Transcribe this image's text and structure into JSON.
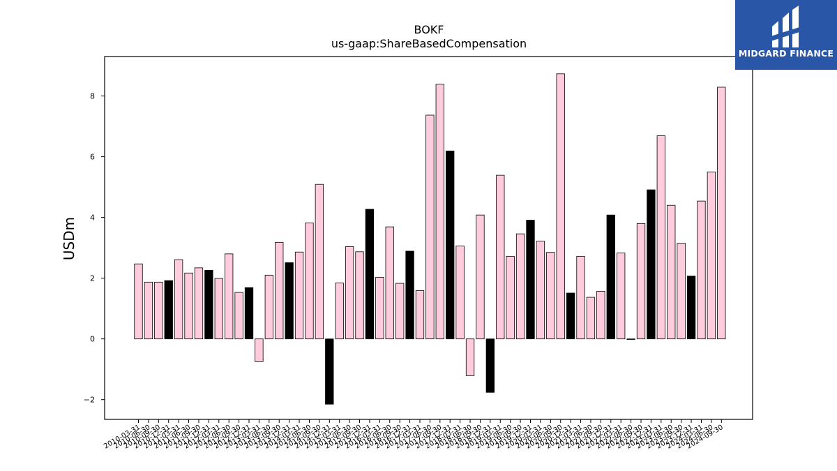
{
  "logo": {
    "text": "MIDGARD FINANCE",
    "icon": "midgard-logo-icon",
    "background": "#2a56a8"
  },
  "chart_data": {
    "type": "bar",
    "title": "BOKF",
    "subtitle": "us-gaap:ShareBasedCompensation",
    "xlabel": "",
    "ylabel": "USDm",
    "ylim": [
      -2.65,
      9.3
    ],
    "yticks": [
      -2,
      0,
      2,
      4,
      6,
      8
    ],
    "grid": false,
    "colors": {
      "default": "#ffccdd",
      "highlight": "#000000",
      "edge": "#000000"
    },
    "categories": [
      "2010-03-31",
      "2010-06-30",
      "2010-09-30",
      "2010-12-31",
      "2011-03-31",
      "2011-06-30",
      "2011-09-30",
      "2011-12-31",
      "2012-03-31",
      "2012-06-30",
      "2012-09-30",
      "2012-12-31",
      "2013-03-31",
      "2013-06-30",
      "2013-09-30",
      "2013-12-31",
      "2014-03-31",
      "2014-06-30",
      "2014-09-30",
      "2014-12-31",
      "2015-03-31",
      "2015-06-30",
      "2015-09-30",
      "2015-12-31",
      "2016-03-31",
      "2016-06-30",
      "2016-09-30",
      "2016-12-31",
      "2017-03-31",
      "2017-06-30",
      "2017-09-30",
      "2017-12-31",
      "2018-03-31",
      "2018-06-30",
      "2018-09-30",
      "2018-12-31",
      "2019-03-31",
      "2019-06-30",
      "2019-09-30",
      "2019-12-31",
      "2020-03-31",
      "2020-06-30",
      "2020-09-30",
      "2020-12-31",
      "2021-03-31",
      "2021-06-30",
      "2021-09-30",
      "2021-12-31",
      "2022-03-31",
      "2022-06-30",
      "2022-09-30",
      "2022-12-31",
      "2023-03-31",
      "2023-06-30",
      "2023-09-30",
      "2023-12-31",
      "2024-03-31",
      "2024-06-30",
      "2024-09-30"
    ],
    "values": [
      2.47,
      1.87,
      1.87,
      1.92,
      2.61,
      2.17,
      2.34,
      2.26,
      1.99,
      2.8,
      1.53,
      1.69,
      -0.75,
      2.1,
      3.18,
      2.51,
      2.86,
      3.82,
      5.09,
      -2.15,
      1.84,
      3.04,
      2.87,
      4.27,
      2.03,
      3.69,
      1.83,
      2.89,
      1.59,
      7.37,
      8.39,
      6.19,
      3.06,
      -1.21,
      4.08,
      -1.76,
      5.39,
      2.72,
      3.46,
      3.91,
      3.22,
      2.85,
      8.73,
      1.51,
      2.72,
      1.37,
      1.57,
      4.08,
      2.83,
      0.0,
      3.8,
      4.91,
      6.69,
      4.4,
      3.15,
      2.07,
      4.54,
      5.5,
      8.29
    ],
    "highlighted": [
      3,
      7,
      11,
      15,
      19,
      23,
      27,
      31,
      35,
      39,
      43,
      47,
      51,
      55
    ]
  }
}
